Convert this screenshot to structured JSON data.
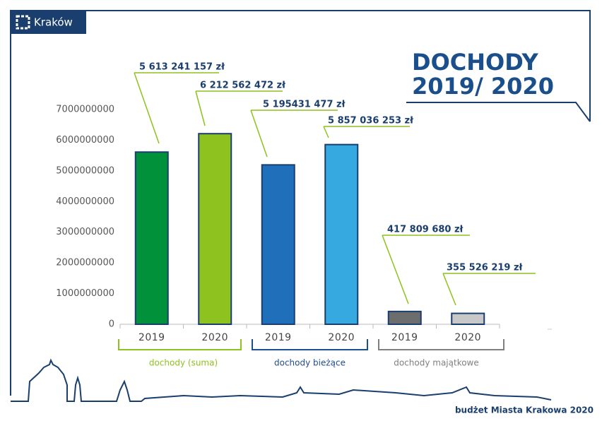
{
  "logo": "Kraków",
  "footer": "budżet Miasta Krakowa 2020",
  "chart_data": {
    "type": "bar",
    "title": "DOCHODY",
    "subtitle": "2019/ 2020",
    "ylim": [
      0,
      7000000000
    ],
    "yticks": [
      0,
      1000000000,
      2000000000,
      3000000000,
      4000000000,
      5000000000,
      6000000000,
      7000000000
    ],
    "groups": [
      {
        "name": "dochody (suma)",
        "color": "#8dc21f",
        "categories": [
          "2019",
          "2020"
        ],
        "values": [
          5613241157,
          6212562472
        ],
        "value_labels": [
          "5 613 241 157 zł",
          "6 212 562 472 zł"
        ],
        "colors": [
          "#00913a",
          "#8dc21f"
        ]
      },
      {
        "name": "dochody bieżące",
        "color": "#1f4e8c",
        "categories": [
          "2019",
          "2020"
        ],
        "values": [
          5195431477,
          5857036253
        ],
        "value_labels": [
          "5 195431 477 zł",
          "5 857 036 253 zł"
        ],
        "colors": [
          "#1f6fba",
          "#36a9e1"
        ]
      },
      {
        "name": "dochody majątkowe",
        "color": "#7f7f7f",
        "categories": [
          "2019",
          "2020"
        ],
        "values": [
          417809680,
          355526219
        ],
        "value_labels": [
          "417 809 680 zł",
          "355 526 219 zł"
        ],
        "colors": [
          "#6d6d6d",
          "#c8c8c8"
        ]
      }
    ]
  }
}
